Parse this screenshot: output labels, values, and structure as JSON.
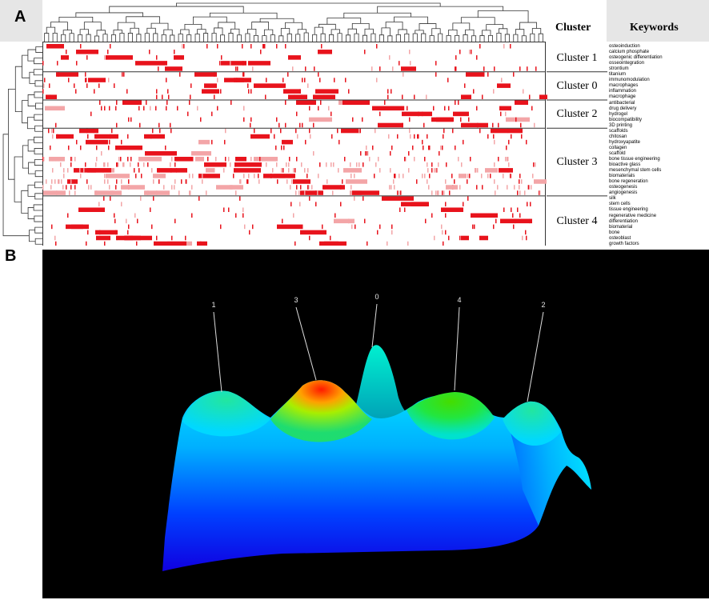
{
  "panel_a": {
    "label": "A",
    "headers": {
      "cluster": "Cluster",
      "keywords": "Keywords"
    },
    "clusters": [
      {
        "name": "Cluster 1",
        "keywords": [
          "osteoinduction",
          "calcium phosphate",
          "osteogenic differentiation",
          "osseointegration",
          "strontium"
        ]
      },
      {
        "name": "Cluster 0",
        "keywords": [
          "titanium",
          "immunomodulation",
          "macrophages",
          "inflammation",
          "macrophage"
        ]
      },
      {
        "name": "Cluster 2",
        "keywords": [
          "antibacterial",
          "drug delivery",
          "hydrogel",
          "biocompatibility",
          "3D printing"
        ]
      },
      {
        "name": "Cluster 3",
        "keywords": [
          "scaffolds",
          "chitosan",
          "hydroxyapatite",
          "collagen",
          "scaffold",
          "bone tissue engineering",
          "bioactive glass",
          "mesenchymal stem cells",
          "biomaterials",
          "bone regeneration",
          "osteogenesis",
          "angiogenesis"
        ]
      },
      {
        "name": "Cluster 4",
        "keywords": [
          "silk",
          "stem cells",
          "tissue engineering",
          "regenerative medicine",
          "differentiation",
          "biomaterial",
          "bone",
          "osteoblast",
          "growth factors"
        ]
      }
    ],
    "colors": {
      "heat_strong": "#e8131c",
      "heat_light": "#f3a5a7",
      "grid": "#333333"
    }
  },
  "panel_b": {
    "label": "B",
    "peak_labels": [
      "1",
      "3",
      "0",
      "4",
      "2"
    ],
    "colors": {
      "background": "#000000",
      "low": "#0000ff",
      "mid": "#00e0ff",
      "high_green": "#33dd22",
      "peak_red": "#ff2200"
    }
  },
  "chart_data": {
    "type": "heatmap",
    "rows": [
      "osteoinduction",
      "calcium phosphate",
      "osteogenic differentiation",
      "osseointegration",
      "strontium",
      "titanium",
      "immunomodulation",
      "macrophages",
      "inflammation",
      "macrophage",
      "antibacterial",
      "drug delivery",
      "hydrogel",
      "biocompatibility",
      "3D printing",
      "scaffolds",
      "chitosan",
      "hydroxyapatite",
      "collagen",
      "scaffold",
      "bone tissue engineering",
      "bioactive glass",
      "mesenchymal stem cells",
      "biomaterials",
      "bone regeneration",
      "osteogenesis",
      "angiogenesis",
      "silk",
      "stem cells",
      "tissue engineering",
      "regenerative medicine",
      "differentiation",
      "biomaterial",
      "bone",
      "osteoblast",
      "growth factors"
    ],
    "row_groups": [
      "Cluster 1",
      "Cluster 1",
      "Cluster 1",
      "Cluster 1",
      "Cluster 1",
      "Cluster 0",
      "Cluster 0",
      "Cluster 0",
      "Cluster 0",
      "Cluster 0",
      "Cluster 2",
      "Cluster 2",
      "Cluster 2",
      "Cluster 2",
      "Cluster 2",
      "Cluster 3",
      "Cluster 3",
      "Cluster 3",
      "Cluster 3",
      "Cluster 3",
      "Cluster 3",
      "Cluster 3",
      "Cluster 3",
      "Cluster 3",
      "Cluster 3",
      "Cluster 3",
      "Cluster 3",
      "Cluster 4",
      "Cluster 4",
      "Cluster 4",
      "Cluster 4",
      "Cluster 4",
      "Cluster 4",
      "Cluster 4",
      "Cluster 4",
      "Cluster 4"
    ],
    "surface_peaks": [
      {
        "label": "1"
      },
      {
        "label": "3"
      },
      {
        "label": "0"
      },
      {
        "label": "4"
      },
      {
        "label": "2"
      }
    ]
  }
}
